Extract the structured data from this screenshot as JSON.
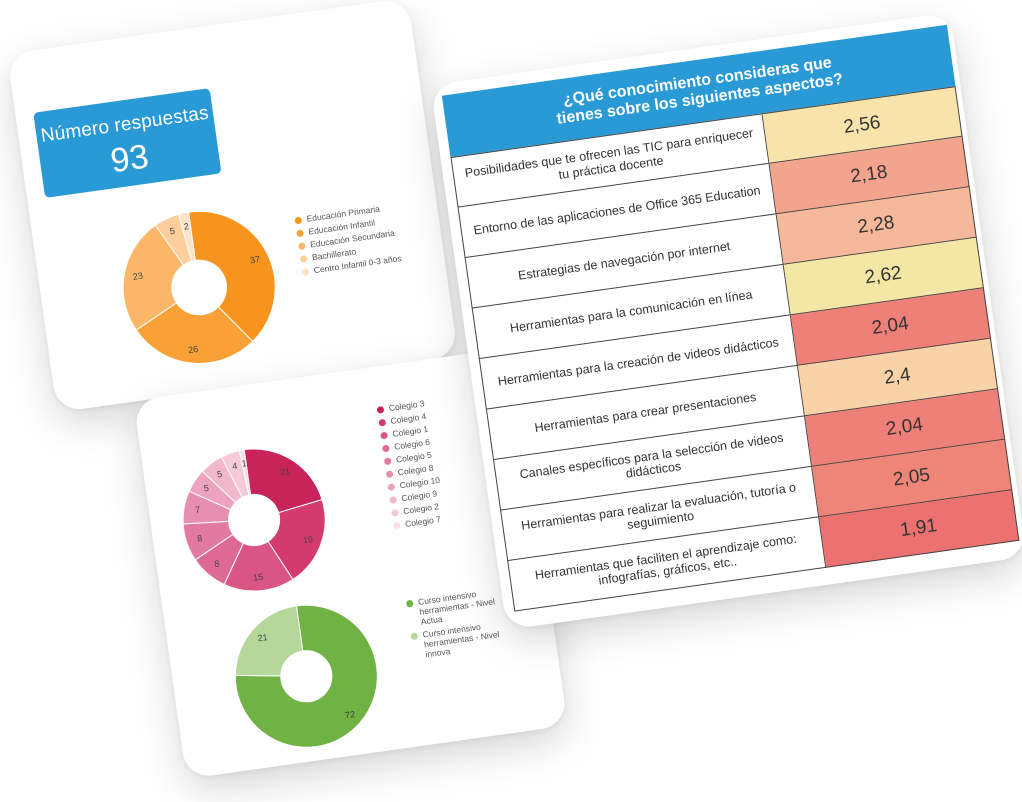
{
  "responses": {
    "label": "Número respuestas",
    "count": "93"
  },
  "chart_data": [
    {
      "type": "pie",
      "variant": "donut",
      "legend_position": "right",
      "categories": [
        "Educación Primaria",
        "Educación Infantil",
        "Educación Secundaria",
        "Bachillerato",
        "Centro Infantil 0-3 años"
      ],
      "values": [
        37,
        26,
        23,
        5,
        2
      ],
      "colors": [
        "#f7941d",
        "#f9a136",
        "#fbb768",
        "#fccf9c",
        "#fde3c8"
      ]
    },
    {
      "type": "pie",
      "variant": "donut",
      "legend_position": "right",
      "categories": [
        "Colegio 3",
        "Colegio 4",
        "Colegio 1",
        "Colegio 6",
        "Colegio 5",
        "Colegio 8",
        "Colegio 10",
        "Colegio 9",
        "Colegio 2",
        "Colegio 7"
      ],
      "values": [
        21,
        19,
        15,
        8,
        8,
        7,
        5,
        5,
        4,
        1
      ],
      "colors": [
        "#c8245a",
        "#d33a6d",
        "#d85584",
        "#de6a93",
        "#e27aa0",
        "#e78fae",
        "#eca3bd",
        "#f1b8cc",
        "#f5cbd9",
        "#f9dfe8"
      ]
    },
    {
      "type": "pie",
      "variant": "donut",
      "legend_position": "right",
      "categories": [
        "Curso intensivo herramientas - Nivel Actua",
        "Curso intensivo herramientas - Nivel innova"
      ],
      "values": [
        72,
        21
      ],
      "colors": [
        "#70b244",
        "#b5d79a"
      ]
    },
    {
      "type": "table",
      "title": "¿Qué conocimiento consideras que tienes sobre los siguientes aspectos?",
      "rows": [
        {
          "label": "Posibilidades que te ofrecen las TIC para enriquecer tu práctica docente",
          "value": "2,56",
          "color": "#f8e3ab"
        },
        {
          "label": "Entorno de las aplicaciones de Office 365 Education",
          "value": "2,18",
          "color": "#f3a48d"
        },
        {
          "label": "Estrategias de navegación por internet",
          "value": "2,28",
          "color": "#f6b89a"
        },
        {
          "label": "Herramientas para la comunicación en línea",
          "value": "2,62",
          "color": "#f4e6a5"
        },
        {
          "label": "Herramientas para la creación de videos didácticos",
          "value": "2,04",
          "color": "#ee7f79"
        },
        {
          "label": "Herramientas para crear presentaciones",
          "value": "2,4",
          "color": "#f9d3a8"
        },
        {
          "label": "Canales específicos para la selección de videos didácticos",
          "value": "2,04",
          "color": "#ee7f79"
        },
        {
          "label": "Herramientas para realizar la evaluación, tutoría o seguimiento",
          "value": "2,05",
          "color": "#ef8479"
        },
        {
          "label": "Herramientas que faciliten el aprendizaje como: infografías, gráficos, etc..",
          "value": "1,91",
          "color": "#eb7270"
        }
      ]
    }
  ]
}
